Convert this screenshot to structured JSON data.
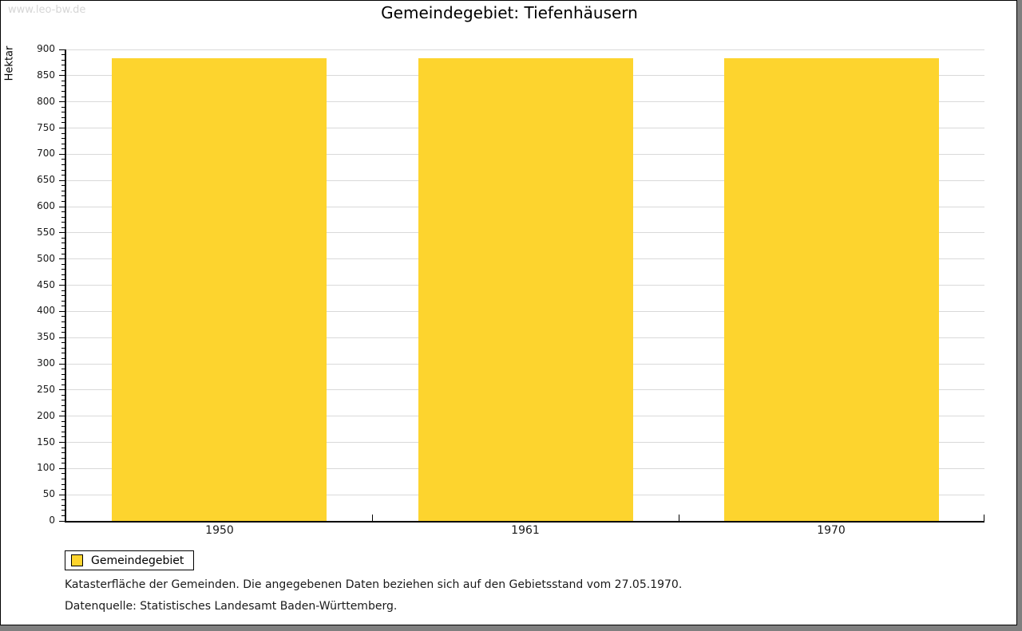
{
  "watermark": "www.leo-bw.de",
  "title": "Gemeindegebiet: Tiefenhäusern",
  "chart_data": {
    "type": "bar",
    "title": "Gemeindegebiet: Tiefenhäusern",
    "categories": [
      "1950",
      "1961",
      "1970"
    ],
    "series": [
      {
        "name": "Gemeindegebiet",
        "values": [
          884,
          884,
          884
        ]
      }
    ],
    "xlabel": "",
    "ylabel": "Hektar",
    "ylim": [
      0,
      900
    ],
    "y_major_step": 50,
    "y_minor_step": 10,
    "grid": true,
    "legend_position": "bottom-left",
    "bar_color": "#FDD42E"
  },
  "legend": {
    "label": "Gemeindegebiet",
    "swatch_color": "#FDD42E"
  },
  "footnotes": [
    "Katasterfläche der Gemeinden. Die angegebenen Daten beziehen sich auf den Gebietsstand vom 27.05.1970.",
    "Datenquelle: Statistisches Landesamt Baden-Württemberg."
  ],
  "colors": {
    "bar": "#FDD42E",
    "gridline": "#d9d9d9",
    "axis": "#000000",
    "watermark": "#d6d6d6",
    "frame_shadow": "#7f7f7f",
    "background": "#ffffff"
  }
}
